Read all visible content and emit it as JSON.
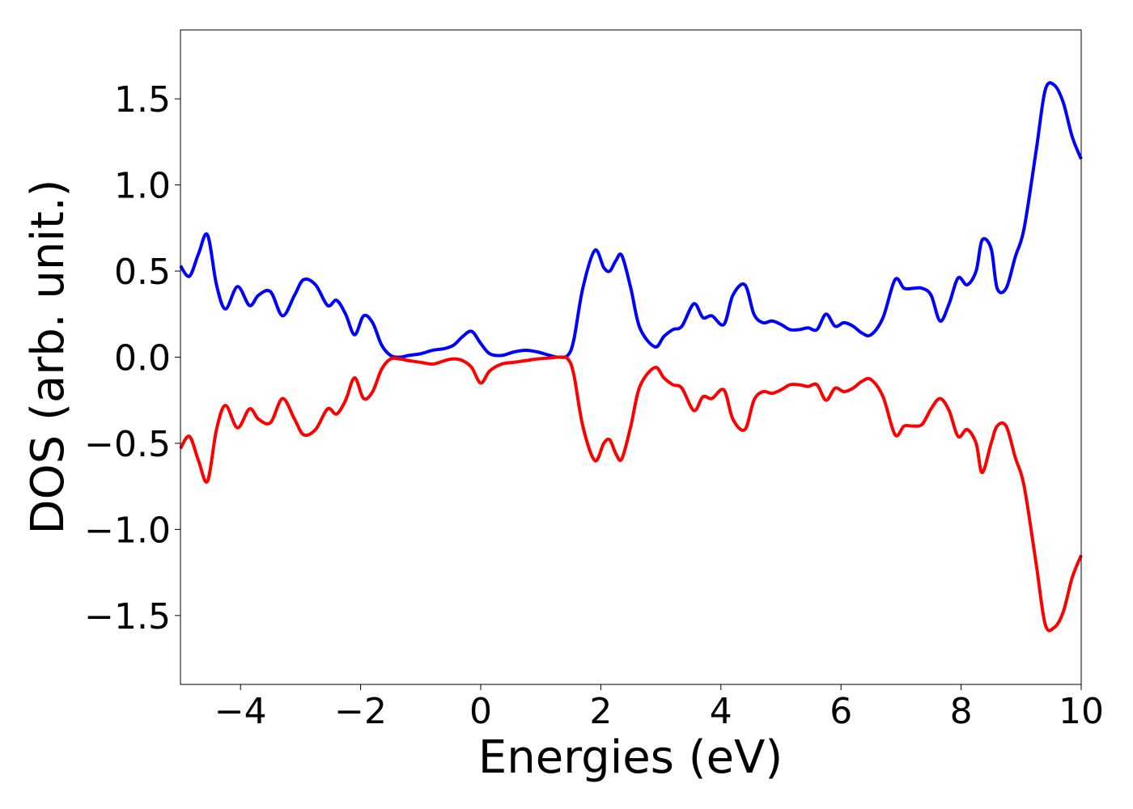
{
  "chart_data": {
    "type": "line",
    "title": "",
    "xlabel": "Energies (eV)",
    "ylabel": "DOS (arb. unit.)",
    "xlim": [
      -5,
      10
    ],
    "ylim": [
      -1.9,
      1.9
    ],
    "grid": false,
    "legend": "none",
    "x_ticks": [
      -4,
      -2,
      0,
      2,
      4,
      6,
      8,
      10
    ],
    "x_tick_labels": [
      "−4",
      "−2",
      "0",
      "2",
      "4",
      "6",
      "8",
      "10"
    ],
    "y_ticks": [
      1.5,
      1.0,
      0.5,
      0.0,
      -0.5,
      -1.0,
      -1.5
    ],
    "y_tick_labels": [
      "1.5",
      "1.0",
      "0.5",
      "0.0",
      "−0.5",
      "−1.0",
      "−1.5"
    ],
    "series": [
      {
        "color": "#0000ff",
        "x": [
          -5.0,
          -4.85,
          -4.7,
          -4.55,
          -4.4,
          -4.25,
          -4.05,
          -3.85,
          -3.7,
          -3.5,
          -3.3,
          -3.1,
          -2.95,
          -2.75,
          -2.55,
          -2.4,
          -2.25,
          -2.1,
          -1.95,
          -1.8,
          -1.65,
          -1.5,
          -1.35,
          -1.2,
          -1.0,
          -0.8,
          -0.6,
          -0.45,
          -0.3,
          -0.15,
          0.0,
          0.15,
          0.35,
          0.55,
          0.75,
          0.95,
          1.15,
          1.3,
          1.45,
          1.55,
          1.7,
          1.9,
          2.05,
          2.15,
          2.25,
          2.35,
          2.5,
          2.65,
          2.9,
          3.05,
          3.2,
          3.35,
          3.55,
          3.7,
          3.85,
          4.05,
          4.2,
          4.4,
          4.55,
          4.7,
          4.85,
          5.0,
          5.15,
          5.3,
          5.45,
          5.6,
          5.75,
          5.9,
          6.05,
          6.2,
          6.35,
          6.5,
          6.7,
          6.9,
          7.05,
          7.2,
          7.35,
          7.5,
          7.65,
          7.8,
          7.95,
          8.1,
          8.25,
          8.35,
          8.5,
          8.6,
          8.75,
          8.9,
          9.05,
          9.25,
          9.4,
          9.55,
          9.7,
          9.85,
          10.0
        ],
        "y": [
          0.53,
          0.47,
          0.6,
          0.71,
          0.42,
          0.28,
          0.41,
          0.3,
          0.36,
          0.38,
          0.24,
          0.36,
          0.45,
          0.42,
          0.3,
          0.33,
          0.25,
          0.13,
          0.24,
          0.2,
          0.07,
          0.01,
          0.0,
          0.01,
          0.02,
          0.04,
          0.05,
          0.07,
          0.12,
          0.15,
          0.08,
          0.02,
          0.01,
          0.03,
          0.04,
          0.03,
          0.01,
          0.0,
          0.01,
          0.1,
          0.4,
          0.62,
          0.52,
          0.5,
          0.56,
          0.59,
          0.4,
          0.17,
          0.06,
          0.12,
          0.16,
          0.18,
          0.31,
          0.23,
          0.24,
          0.19,
          0.36,
          0.42,
          0.25,
          0.2,
          0.21,
          0.19,
          0.16,
          0.16,
          0.17,
          0.16,
          0.25,
          0.18,
          0.2,
          0.18,
          0.14,
          0.13,
          0.23,
          0.45,
          0.4,
          0.4,
          0.4,
          0.36,
          0.21,
          0.31,
          0.46,
          0.42,
          0.5,
          0.68,
          0.63,
          0.4,
          0.4,
          0.58,
          0.75,
          1.2,
          1.55,
          1.58,
          1.48,
          1.28,
          1.15
        ]
      },
      {
        "color": "#ff0000",
        "x": [
          -5.0,
          -4.85,
          -4.7,
          -4.55,
          -4.4,
          -4.25,
          -4.05,
          -3.85,
          -3.7,
          -3.5,
          -3.3,
          -3.1,
          -2.95,
          -2.75,
          -2.55,
          -2.4,
          -2.25,
          -2.1,
          -1.95,
          -1.8,
          -1.65,
          -1.5,
          -1.35,
          -1.2,
          -1.0,
          -0.8,
          -0.6,
          -0.45,
          -0.3,
          -0.15,
          0.0,
          0.15,
          0.35,
          0.55,
          0.75,
          0.95,
          1.15,
          1.3,
          1.45,
          1.55,
          1.7,
          1.9,
          2.05,
          2.15,
          2.25,
          2.35,
          2.5,
          2.65,
          2.9,
          3.05,
          3.2,
          3.35,
          3.55,
          3.7,
          3.85,
          4.05,
          4.2,
          4.4,
          4.55,
          4.7,
          4.85,
          5.0,
          5.15,
          5.3,
          5.45,
          5.6,
          5.75,
          5.9,
          6.05,
          6.2,
          6.35,
          6.5,
          6.7,
          6.9,
          7.05,
          7.2,
          7.35,
          7.5,
          7.65,
          7.8,
          7.95,
          8.1,
          8.25,
          8.35,
          8.5,
          8.6,
          8.75,
          8.9,
          9.05,
          9.25,
          9.4,
          9.55,
          9.7,
          9.85,
          10.0
        ],
        "y": [
          -0.53,
          -0.46,
          -0.6,
          -0.72,
          -0.42,
          -0.28,
          -0.41,
          -0.3,
          -0.36,
          -0.38,
          -0.24,
          -0.36,
          -0.45,
          -0.42,
          -0.3,
          -0.33,
          -0.25,
          -0.12,
          -0.24,
          -0.2,
          -0.07,
          -0.01,
          -0.01,
          -0.02,
          -0.03,
          -0.04,
          -0.02,
          -0.01,
          -0.02,
          -0.06,
          -0.15,
          -0.08,
          -0.04,
          -0.03,
          -0.02,
          -0.01,
          -0.005,
          0.0,
          -0.01,
          -0.1,
          -0.4,
          -0.6,
          -0.5,
          -0.48,
          -0.56,
          -0.59,
          -0.4,
          -0.17,
          -0.06,
          -0.12,
          -0.16,
          -0.18,
          -0.31,
          -0.23,
          -0.24,
          -0.19,
          -0.36,
          -0.42,
          -0.25,
          -0.2,
          -0.21,
          -0.19,
          -0.16,
          -0.16,
          -0.17,
          -0.16,
          -0.25,
          -0.18,
          -0.2,
          -0.18,
          -0.14,
          -0.13,
          -0.23,
          -0.45,
          -0.4,
          -0.4,
          -0.39,
          -0.3,
          -0.24,
          -0.31,
          -0.46,
          -0.42,
          -0.5,
          -0.67,
          -0.5,
          -0.4,
          -0.4,
          -0.58,
          -0.75,
          -1.2,
          -1.55,
          -1.57,
          -1.48,
          -1.28,
          -1.15
        ]
      }
    ]
  }
}
